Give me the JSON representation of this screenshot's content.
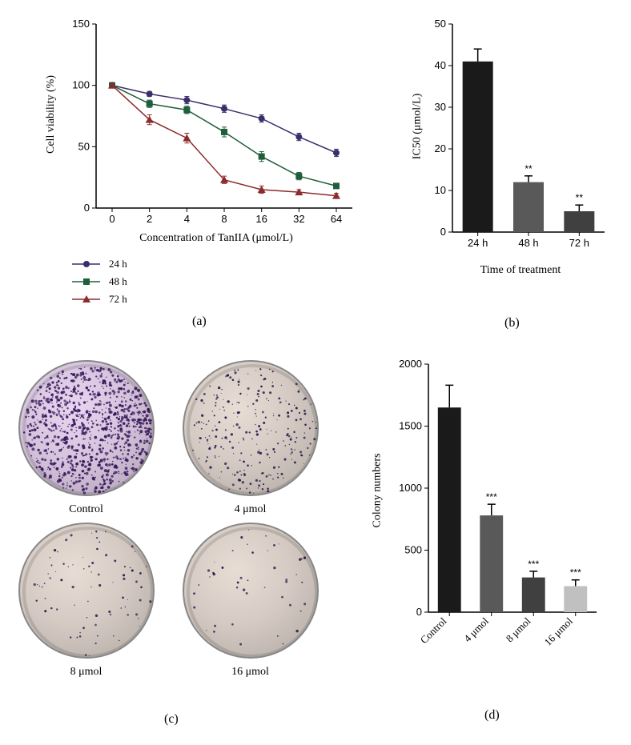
{
  "panel_a": {
    "type": "line",
    "label": "(a)",
    "xlabel": "Concentration of TanIIA (μmol/L)",
    "ylabel": "Cell viability (%)",
    "x_categories": [
      "0",
      "2",
      "4",
      "8",
      "16",
      "32",
      "64"
    ],
    "yticks": [
      0,
      50,
      100,
      150
    ],
    "ylim": [
      0,
      150
    ],
    "series": [
      {
        "name": "24 h",
        "marker": "circle",
        "color": "#3c2e6b",
        "values": [
          100,
          93,
          88,
          81,
          73,
          58,
          45
        ],
        "errors": [
          0,
          2,
          3,
          3,
          3,
          3,
          3
        ]
      },
      {
        "name": "48 h",
        "marker": "square",
        "color": "#1f5e3a",
        "values": [
          100,
          85,
          80,
          62,
          42,
          26,
          18
        ],
        "errors": [
          0,
          3,
          3,
          4,
          4,
          3,
          2
        ]
      },
      {
        "name": "72 h",
        "marker": "triangle",
        "color": "#8c2b2b",
        "values": [
          100,
          72,
          57,
          23,
          15,
          13,
          10
        ],
        "errors": [
          0,
          4,
          4,
          3,
          3,
          2,
          2
        ]
      }
    ],
    "axis_color": "#000000",
    "label_fontsize": 14,
    "tick_fontsize": 13
  },
  "panel_b": {
    "type": "bar",
    "label": "(b)",
    "xlabel": "Time of treatment",
    "ylabel": "IC50 (μmol/L)",
    "categories": [
      "24 h",
      "48 h",
      "72 h"
    ],
    "values": [
      41,
      12,
      5
    ],
    "errors": [
      3,
      1.5,
      1.5
    ],
    "sig": [
      "",
      "**",
      "**"
    ],
    "colors": [
      "#1a1a1a",
      "#595959",
      "#404040"
    ],
    "yticks": [
      0,
      10,
      20,
      30,
      40,
      50
    ],
    "ylim": [
      0,
      50
    ],
    "bar_width": 0.6,
    "label_fontsize": 14,
    "tick_fontsize": 13
  },
  "panel_c": {
    "label": "(c)",
    "items": [
      {
        "label": "Control",
        "density": "high",
        "bg": "#e8d5f0",
        "dot_color": "#3a1a5c"
      },
      {
        "label": "4 μmol",
        "density": "medium",
        "bg": "#e8ddd5",
        "dot_color": "#2a1a4c"
      },
      {
        "label": "8 μmol",
        "density": "low",
        "bg": "#e8ddd5",
        "dot_color": "#2a1a4c"
      },
      {
        "label": "16 μmol",
        "density": "vlow",
        "bg": "#e8ddd5",
        "dot_color": "#2a1a4c"
      }
    ]
  },
  "panel_d": {
    "type": "bar",
    "label": "(d)",
    "xlabel": "",
    "ylabel": "Colony numbers",
    "categories": [
      "Control",
      "4 μmol",
      "8 μmol",
      "16 μmol"
    ],
    "values": [
      1650,
      780,
      280,
      210
    ],
    "errors": [
      180,
      90,
      50,
      50
    ],
    "sig": [
      "",
      "***",
      "***",
      "***"
    ],
    "colors": [
      "#1a1a1a",
      "#595959",
      "#404040",
      "#c0c0c0"
    ],
    "yticks": [
      0,
      500,
      1000,
      1500,
      2000
    ],
    "ylim": [
      0,
      2000
    ],
    "bar_width": 0.55,
    "label_fontsize": 14,
    "tick_fontsize": 13
  }
}
